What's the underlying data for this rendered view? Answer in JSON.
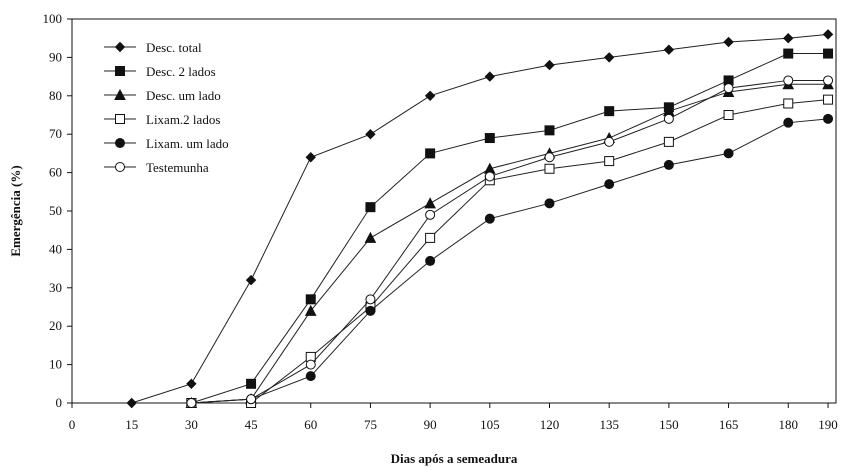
{
  "chart_data": {
    "type": "line",
    "xlabel": "Dias após a semeadura",
    "ylabel": "Emergência (%)",
    "ylim": [
      0,
      100
    ],
    "yticks": [
      0,
      10,
      20,
      30,
      40,
      50,
      60,
      70,
      80,
      90,
      100
    ],
    "xticks": [
      "0",
      "15",
      "30",
      "45",
      "60",
      "75",
      "90",
      "105",
      "120",
      "135",
      "150",
      "165",
      "180",
      "190"
    ],
    "grid": false,
    "legend_position": "top-left",
    "x": [
      "15",
      "30",
      "45",
      "60",
      "75",
      "90",
      "105",
      "120",
      "135",
      "150",
      "165",
      "180",
      "190"
    ],
    "series": [
      {
        "name": "Desc. total",
        "marker": "diamond-filled",
        "values": [
          0,
          5,
          32,
          64,
          70,
          80,
          85,
          88,
          90,
          92,
          94,
          95,
          96
        ]
      },
      {
        "name": "Desc. 2 lados",
        "marker": "square-filled",
        "values": [
          null,
          0,
          5,
          27,
          51,
          65,
          69,
          71,
          76,
          77,
          84,
          91,
          91
        ]
      },
      {
        "name": "Desc. um lado",
        "marker": "triangle-filled",
        "values": [
          null,
          0,
          1,
          24,
          43,
          52,
          61,
          65,
          69,
          76,
          81,
          83,
          83
        ]
      },
      {
        "name": "Lixam.2 lados",
        "marker": "square-open",
        "values": [
          null,
          0,
          0,
          12,
          25,
          43,
          58,
          61,
          63,
          68,
          75,
          78,
          79
        ]
      },
      {
        "name": "Lixam. um lado",
        "marker": "circle-filled",
        "values": [
          null,
          0,
          1,
          7,
          24,
          37,
          48,
          52,
          57,
          62,
          65,
          73,
          74
        ]
      },
      {
        "name": "Testemunha",
        "marker": "circle-open",
        "values": [
          null,
          0,
          1,
          10,
          27,
          49,
          59,
          64,
          68,
          74,
          82,
          84,
          84
        ]
      }
    ]
  }
}
